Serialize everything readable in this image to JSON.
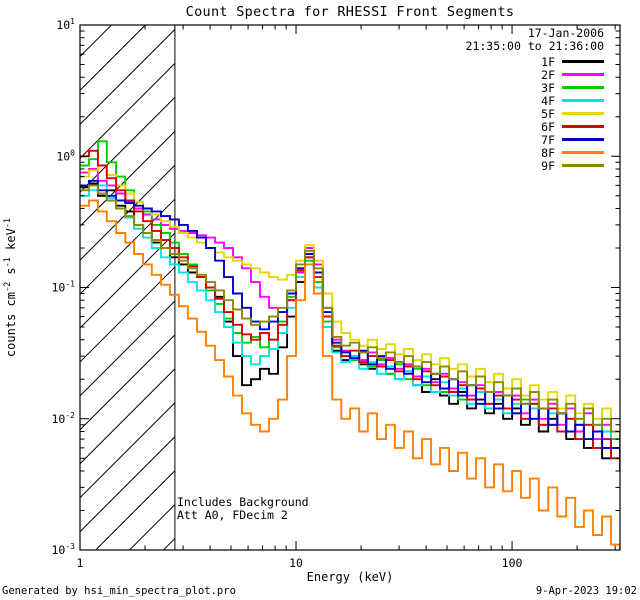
{
  "header": {
    "date": "17-Jan-2006",
    "time_range": "21:35:00 to 21:36:00"
  },
  "annotations": {
    "line1": "Includes Background",
    "line2": "Att A0, FDecim 2"
  },
  "footer": {
    "left": "Generated by hsi_min_spectra_plot.pro",
    "right": "9-Apr-2023 19:02"
  },
  "chart_data": {
    "type": "line",
    "style": "stepped-histogram",
    "title": "Count Spectra for RHESSI Front Segments",
    "xlabel": "Energy (keV)",
    "ylabel": "counts cm^-2 s^-1 keV^-1",
    "xscale": "log",
    "yscale": "log",
    "xlim": [
      1,
      316
    ],
    "ylim": [
      0.001,
      10
    ],
    "x_major_ticks": [
      1,
      10,
      100
    ],
    "y_major_ticks": [
      0.001,
      0.01,
      0.1,
      1,
      10
    ],
    "grid": false,
    "legend_position": "top-right",
    "hatch_region": {
      "xmin": 1,
      "xmax": 2.75,
      "style": "diagonal-hatch"
    },
    "energies_keV": [
      1.0,
      1.1,
      1.21,
      1.33,
      1.47,
      1.62,
      1.78,
      1.96,
      2.15,
      2.37,
      2.61,
      2.87,
      3.16,
      3.48,
      3.83,
      4.22,
      4.64,
      5.11,
      5.62,
      6.19,
      6.81,
      7.5,
      8.25,
      9.09,
      10.0,
      11.0,
      12.1,
      13.3,
      14.7,
      16.2,
      17.8,
      19.6,
      21.5,
      23.7,
      26.1,
      28.7,
      31.6,
      34.8,
      38.3,
      42.2,
      46.4,
      51.1,
      56.2,
      61.9,
      68.1,
      75.0,
      82.5,
      90.9,
      100,
      110,
      121,
      133,
      147,
      162,
      178,
      196,
      215,
      237,
      261,
      287,
      316
    ],
    "series": [
      {
        "name": "1F",
        "color": "#000000",
        "values": [
          0.58,
          0.62,
          0.5,
          0.55,
          0.42,
          0.38,
          0.3,
          0.26,
          0.22,
          0.2,
          0.17,
          0.15,
          0.13,
          0.12,
          0.1,
          0.085,
          0.055,
          0.03,
          0.018,
          0.02,
          0.024,
          0.022,
          0.035,
          0.06,
          0.11,
          0.17,
          0.13,
          0.06,
          0.033,
          0.028,
          0.03,
          0.026,
          0.024,
          0.028,
          0.022,
          0.02,
          0.023,
          0.018,
          0.016,
          0.02,
          0.015,
          0.013,
          0.016,
          0.012,
          0.014,
          0.011,
          0.013,
          0.01,
          0.012,
          0.009,
          0.013,
          0.008,
          0.01,
          0.011,
          0.007,
          0.009,
          0.006,
          0.008,
          0.005,
          0.006,
          0.004
        ]
      },
      {
        "name": "2F",
        "color": "#ff00ff",
        "values": [
          0.75,
          0.8,
          0.65,
          0.6,
          0.52,
          0.45,
          0.4,
          0.36,
          0.33,
          0.3,
          0.28,
          0.27,
          0.26,
          0.25,
          0.24,
          0.22,
          0.2,
          0.17,
          0.14,
          0.11,
          0.085,
          0.07,
          0.065,
          0.08,
          0.13,
          0.2,
          0.15,
          0.07,
          0.04,
          0.033,
          0.03,
          0.028,
          0.032,
          0.026,
          0.029,
          0.024,
          0.026,
          0.021,
          0.024,
          0.019,
          0.022,
          0.017,
          0.019,
          0.015,
          0.018,
          0.013,
          0.016,
          0.012,
          0.015,
          0.011,
          0.014,
          0.01,
          0.013,
          0.009,
          0.012,
          0.008,
          0.011,
          0.007,
          0.009,
          0.006,
          0.005
        ]
      },
      {
        "name": "3F",
        "color": "#00cc00",
        "values": [
          0.85,
          0.95,
          1.3,
          0.9,
          0.7,
          0.55,
          0.45,
          0.38,
          0.3,
          0.26,
          0.22,
          0.18,
          0.15,
          0.12,
          0.095,
          0.075,
          0.058,
          0.045,
          0.038,
          0.042,
          0.035,
          0.04,
          0.055,
          0.085,
          0.14,
          0.16,
          0.11,
          0.055,
          0.035,
          0.03,
          0.028,
          0.032,
          0.025,
          0.028,
          0.022,
          0.026,
          0.02,
          0.024,
          0.018,
          0.022,
          0.016,
          0.02,
          0.014,
          0.018,
          0.013,
          0.016,
          0.012,
          0.015,
          0.011,
          0.014,
          0.01,
          0.012,
          0.009,
          0.011,
          0.008,
          0.01,
          0.007,
          0.009,
          0.006,
          0.007,
          0.005
        ]
      },
      {
        "name": "4F",
        "color": "#00e5e5",
        "values": [
          0.5,
          0.55,
          0.6,
          0.48,
          0.4,
          0.34,
          0.28,
          0.24,
          0.2,
          0.17,
          0.15,
          0.13,
          0.11,
          0.095,
          0.08,
          0.065,
          0.05,
          0.038,
          0.03,
          0.026,
          0.03,
          0.034,
          0.045,
          0.07,
          0.12,
          0.15,
          0.1,
          0.05,
          0.032,
          0.027,
          0.03,
          0.024,
          0.027,
          0.022,
          0.025,
          0.02,
          0.023,
          0.018,
          0.021,
          0.016,
          0.019,
          0.015,
          0.017,
          0.013,
          0.016,
          0.012,
          0.014,
          0.011,
          0.013,
          0.01,
          0.012,
          0.009,
          0.011,
          0.008,
          0.01,
          0.007,
          0.009,
          0.006,
          0.008,
          0.005,
          0.006
        ]
      },
      {
        "name": "5F",
        "color": "#e3d800",
        "values": [
          0.7,
          0.78,
          0.85,
          0.72,
          0.6,
          0.52,
          0.45,
          0.4,
          0.36,
          0.32,
          0.29,
          0.26,
          0.24,
          0.22,
          0.2,
          0.185,
          0.17,
          0.16,
          0.15,
          0.14,
          0.13,
          0.12,
          0.115,
          0.125,
          0.16,
          0.21,
          0.16,
          0.09,
          0.055,
          0.045,
          0.04,
          0.036,
          0.04,
          0.034,
          0.037,
          0.031,
          0.034,
          0.028,
          0.031,
          0.026,
          0.029,
          0.024,
          0.026,
          0.021,
          0.024,
          0.019,
          0.022,
          0.017,
          0.02,
          0.015,
          0.018,
          0.014,
          0.016,
          0.012,
          0.015,
          0.011,
          0.013,
          0.01,
          0.012,
          0.008,
          0.007
        ]
      },
      {
        "name": "6F",
        "color": "#dd0000",
        "values": [
          1.0,
          1.1,
          0.85,
          0.68,
          0.55,
          0.46,
          0.38,
          0.32,
          0.27,
          0.23,
          0.2,
          0.17,
          0.145,
          0.12,
          0.1,
          0.082,
          0.065,
          0.052,
          0.044,
          0.04,
          0.045,
          0.04,
          0.052,
          0.08,
          0.135,
          0.17,
          0.12,
          0.06,
          0.036,
          0.03,
          0.033,
          0.027,
          0.03,
          0.025,
          0.028,
          0.023,
          0.025,
          0.02,
          0.023,
          0.018,
          0.021,
          0.016,
          0.018,
          0.014,
          0.017,
          0.013,
          0.015,
          0.012,
          0.014,
          0.01,
          0.013,
          0.009,
          0.012,
          0.008,
          0.01,
          0.007,
          0.009,
          0.006,
          0.007,
          0.005,
          0.004
        ]
      },
      {
        "name": "7F",
        "color": "#0000cc",
        "values": [
          0.6,
          0.65,
          0.55,
          0.5,
          0.46,
          0.44,
          0.42,
          0.4,
          0.38,
          0.35,
          0.33,
          0.3,
          0.27,
          0.24,
          0.2,
          0.16,
          0.12,
          0.09,
          0.07,
          0.055,
          0.048,
          0.055,
          0.065,
          0.09,
          0.14,
          0.18,
          0.13,
          0.065,
          0.038,
          0.032,
          0.029,
          0.033,
          0.026,
          0.03,
          0.024,
          0.027,
          0.022,
          0.025,
          0.019,
          0.022,
          0.017,
          0.02,
          0.015,
          0.018,
          0.013,
          0.016,
          0.012,
          0.015,
          0.011,
          0.013,
          0.01,
          0.012,
          0.009,
          0.011,
          0.008,
          0.009,
          0.007,
          0.008,
          0.006,
          0.006,
          0.005
        ]
      },
      {
        "name": "8F",
        "color": "#ff8000",
        "values": [
          0.42,
          0.46,
          0.38,
          0.32,
          0.26,
          0.22,
          0.18,
          0.15,
          0.125,
          0.105,
          0.088,
          0.072,
          0.058,
          0.046,
          0.036,
          0.028,
          0.021,
          0.015,
          0.011,
          0.009,
          0.008,
          0.01,
          0.014,
          0.03,
          0.08,
          0.15,
          0.09,
          0.03,
          0.014,
          0.01,
          0.012,
          0.008,
          0.011,
          0.007,
          0.009,
          0.006,
          0.008,
          0.005,
          0.007,
          0.0045,
          0.006,
          0.004,
          0.0055,
          0.0035,
          0.005,
          0.003,
          0.0045,
          0.0028,
          0.004,
          0.0025,
          0.0035,
          0.002,
          0.003,
          0.0018,
          0.0025,
          0.0015,
          0.002,
          0.0013,
          0.0018,
          0.0011,
          0.001
        ]
      },
      {
        "name": "9F",
        "color": "#8b8b00",
        "values": [
          0.55,
          0.6,
          0.52,
          0.46,
          0.4,
          0.35,
          0.3,
          0.26,
          0.23,
          0.2,
          0.18,
          0.16,
          0.14,
          0.125,
          0.11,
          0.095,
          0.08,
          0.068,
          0.058,
          0.052,
          0.055,
          0.06,
          0.07,
          0.095,
          0.15,
          0.19,
          0.14,
          0.07,
          0.042,
          0.036,
          0.038,
          0.032,
          0.035,
          0.029,
          0.032,
          0.027,
          0.03,
          0.025,
          0.027,
          0.022,
          0.025,
          0.02,
          0.023,
          0.018,
          0.021,
          0.016,
          0.019,
          0.015,
          0.017,
          0.013,
          0.016,
          0.012,
          0.014,
          0.011,
          0.013,
          0.01,
          0.012,
          0.009,
          0.01,
          0.008,
          0.007
        ]
      }
    ]
  }
}
